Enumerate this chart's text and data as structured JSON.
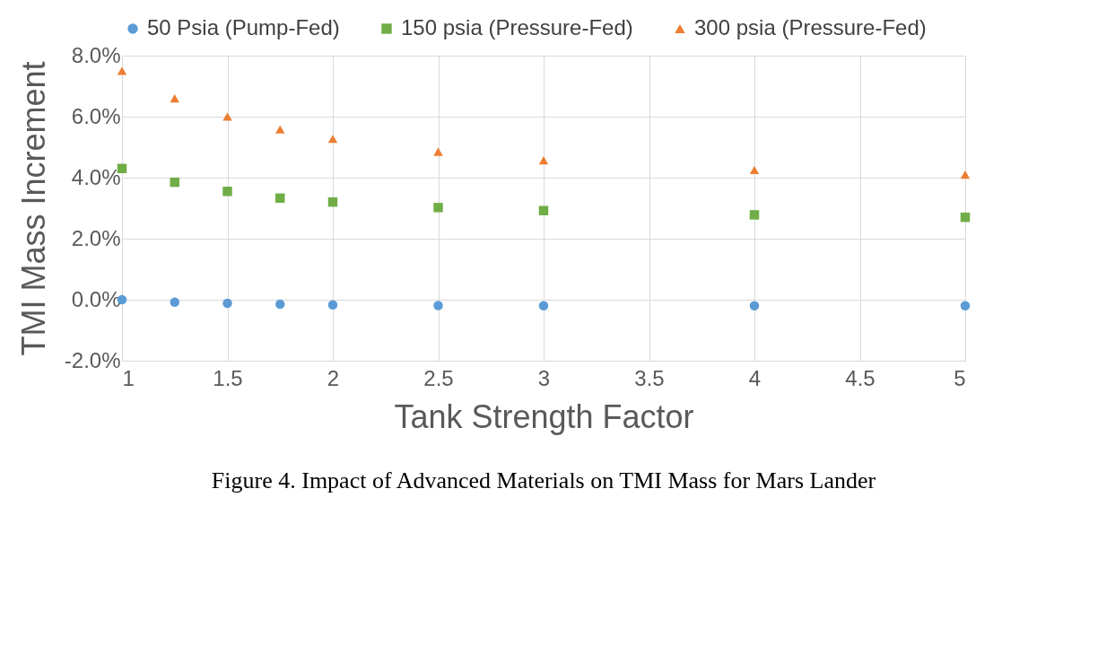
{
  "chart_data": {
    "type": "scatter",
    "xlabel": "Tank Strength Factor",
    "ylabel": "TMI Mass Increment",
    "x": [
      1,
      1.25,
      1.5,
      1.75,
      2,
      2.5,
      3,
      4,
      5
    ],
    "series": [
      {
        "name": "50 Psia (Pump-Fed)",
        "color": "#5b9bd5",
        "marker": "circle",
        "values": [
          0.0,
          -0.08,
          -0.12,
          -0.15,
          -0.17,
          -0.19,
          -0.2,
          -0.2,
          -0.2
        ]
      },
      {
        "name": "150 psia (Pressure-Fed)",
        "color": "#70ad47",
        "marker": "square",
        "values": [
          4.3,
          3.85,
          3.55,
          3.33,
          3.2,
          3.02,
          2.92,
          2.78,
          2.7
        ]
      },
      {
        "name": "300 psia (Pressure-Fed)",
        "color": "#ed7d31",
        "marker": "triangle",
        "values": [
          7.5,
          6.6,
          6.0,
          5.58,
          5.27,
          4.85,
          4.57,
          4.25,
          4.1
        ]
      }
    ],
    "xlim": [
      1,
      5
    ],
    "xticks": [
      1,
      1.5,
      2,
      2.5,
      3,
      3.5,
      4,
      4.5,
      5
    ],
    "ylim": [
      -2,
      8
    ],
    "yticks": [
      {
        "value": -2,
        "label": "-2.0%"
      },
      {
        "value": 0,
        "label": "0.0%"
      },
      {
        "value": 2,
        "label": "2.0%"
      },
      {
        "value": 4,
        "label": "4.0%"
      },
      {
        "value": 6,
        "label": "6.0%"
      },
      {
        "value": 8,
        "label": "8.0%"
      }
    ],
    "grid": true,
    "legend": "top",
    "annotations": [
      "Figure 4. Impact of Advanced Materials on TMI Mass for Mars Lander"
    ]
  }
}
